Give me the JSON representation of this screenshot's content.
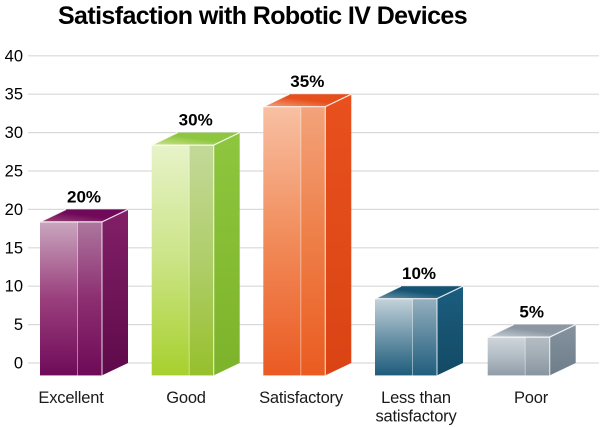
{
  "title": "Satisfaction with Robotic IV Devices",
  "chart_data": {
    "type": "bar",
    "style": "3d-glossy-bars",
    "title": "Satisfaction with Robotic IV Devices",
    "categories": [
      "Excellent",
      "Good",
      "Satisfactory",
      "Less than satisfactory",
      "Poor"
    ],
    "values": [
      20,
      30,
      35,
      10,
      5
    ],
    "data_labels": [
      "20%",
      "30%",
      "35%",
      "10%",
      "5%"
    ],
    "xlabel": "",
    "ylabel": "",
    "ylim": [
      0,
      40
    ],
    "yticks": [
      40,
      35,
      30,
      25,
      20,
      15,
      10,
      5,
      0
    ],
    "grid": true,
    "legend": false,
    "background_color": "#ffffff",
    "gridline_color": "#d9d9d9",
    "text_color": "#000000",
    "bars": [
      {
        "category": "Excellent",
        "value": 20,
        "label": "20%",
        "slug": "excellent",
        "colors": {
          "front_top": "#c9a6be",
          "front_mid": "#9a3f7d",
          "front_bottom": "#6f0b59",
          "side_top": "#822067",
          "side_bottom": "#5e0a4a",
          "top_light": "#9c4678",
          "top_dark": "#70095a",
          "strip": "#6d0a56"
        }
      },
      {
        "category": "Good",
        "value": 30,
        "label": "30%",
        "slug": "good",
        "colors": {
          "front_top": "#e7f3c9",
          "front_mid": "#cbe486",
          "front_bottom": "#a7d02d",
          "side_top": "#8ec63f",
          "side_bottom": "#7cb32a",
          "top_light": "#cde38b",
          "top_dark": "#8dc63f",
          "strip": "#6f9d2a"
        }
      },
      {
        "category": "Satisfactory",
        "value": 35,
        "label": "35%",
        "slug": "satisfactory",
        "colors": {
          "front_top": "#f8c0a3",
          "front_mid": "#f18b59",
          "front_bottom": "#eb5a22",
          "side_top": "#e8511e",
          "side_bottom": "#da4414",
          "top_light": "#f4a27c",
          "top_dark": "#e64e1c",
          "strip": "#e9601f"
        }
      },
      {
        "category": "Less than satisfactory",
        "value": 10,
        "label": "10%",
        "slug": "less-than-satisfactory",
        "colors": {
          "front_top": "#c4d2da",
          "front_mid": "#6d95a9",
          "front_bottom": "#1d5c7b",
          "side_top": "#1b5d7e",
          "side_bottom": "#134a65",
          "top_light": "#6d94a8",
          "top_dark": "#145372",
          "strip": "#2a6485"
        }
      },
      {
        "category": "Poor",
        "value": 5,
        "label": "5%",
        "slug": "poor",
        "colors": {
          "front_top": "#cfd6db",
          "front_mid": "#b3bdc5",
          "front_bottom": "#909ca7",
          "side_top": "#8593a0",
          "side_bottom": "#6f7d8a",
          "top_light": "#c9d0d6",
          "top_dark": "#8b98a4",
          "strip": "#76848f"
        }
      }
    ]
  }
}
